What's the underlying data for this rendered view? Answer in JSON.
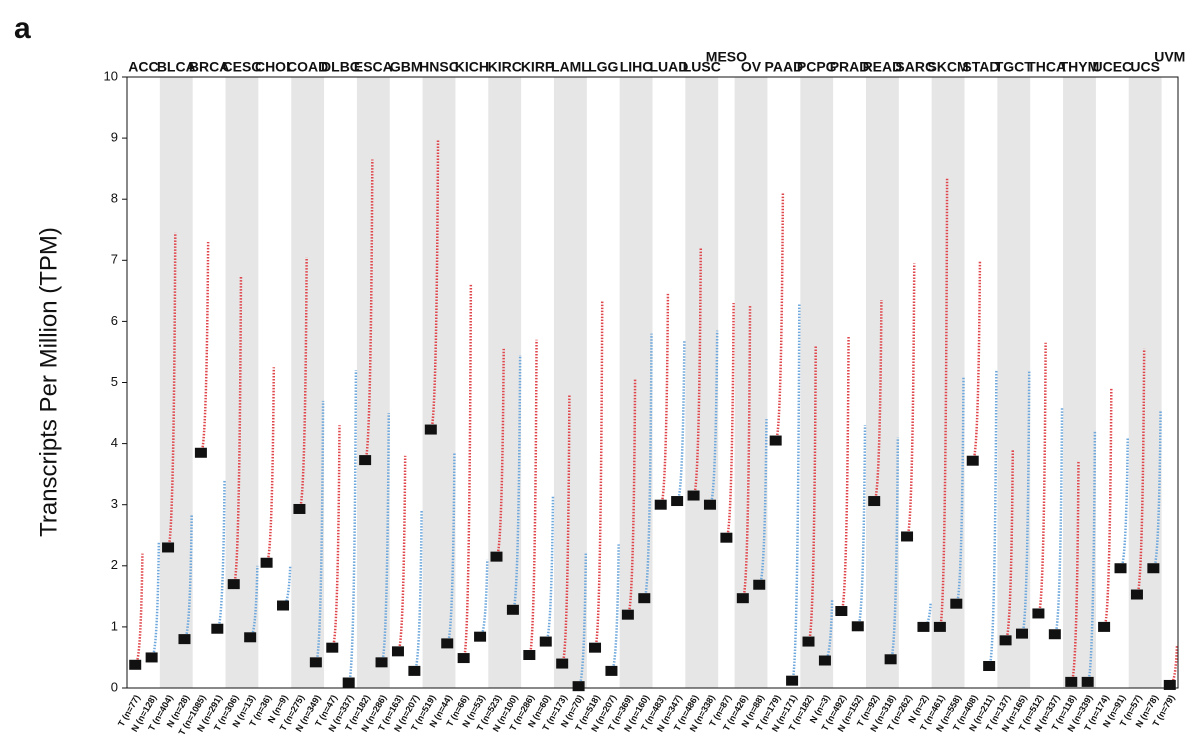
{
  "chart_data": {
    "type": "strip",
    "panel_label": "a",
    "ylabel": "Transcripts Per Million (TPM)",
    "ylim": [
      0,
      10
    ],
    "yticks": [
      0,
      1,
      2,
      3,
      4,
      5,
      6,
      7,
      8,
      9,
      10
    ],
    "label_color": "#111111",
    "highlight_color": "#e8383d",
    "band_color": "#e6e6e6",
    "groups": [
      {
        "name": "ACC",
        "highlight": false,
        "columns": [
          {
            "label": "T (n=77)",
            "color": "#e0474c",
            "median": 0.38,
            "max": 2.2
          },
          {
            "label": "N (n=128)",
            "color": "#6fa8dc",
            "median": 0.5,
            "max": 2.4
          }
        ]
      },
      {
        "name": "BLCA",
        "highlight": true,
        "columns": [
          {
            "label": "T (n=404)",
            "color": "#e0474c",
            "median": 2.3,
            "max": 7.45
          },
          {
            "label": "N (n=28)",
            "color": "#6fa8dc",
            "median": 0.8,
            "max": 2.85
          }
        ]
      },
      {
        "name": "BRCA",
        "highlight": true,
        "columns": [
          {
            "label": "T (n=1085)",
            "color": "#e0474c",
            "median": 3.85,
            "max": 7.3
          },
          {
            "label": "N (n=291)",
            "color": "#6fa8dc",
            "median": 0.97,
            "max": 3.4
          }
        ]
      },
      {
        "name": "CESC",
        "highlight": false,
        "columns": [
          {
            "label": "T (n=306)",
            "color": "#e0474c",
            "median": 1.7,
            "max": 6.75
          },
          {
            "label": "N (n=13)",
            "color": "#6fa8dc",
            "median": 0.83,
            "max": 2.0
          }
        ]
      },
      {
        "name": "CHOL",
        "highlight": false,
        "columns": [
          {
            "label": "T (n=36)",
            "color": "#e0474c",
            "median": 2.05,
            "max": 5.25
          },
          {
            "label": "N (n=9)",
            "color": "#6fa8dc",
            "median": 1.35,
            "max": 2.0
          }
        ]
      },
      {
        "name": "COAD",
        "highlight": true,
        "columns": [
          {
            "label": "T (n=275)",
            "color": "#e0474c",
            "median": 2.93,
            "max": 7.05
          },
          {
            "label": "N (n=349)",
            "color": "#6fa8dc",
            "median": 0.42,
            "max": 4.7
          }
        ]
      },
      {
        "name": "DLBC",
        "highlight": false,
        "columns": [
          {
            "label": "T (n=47)",
            "color": "#e0474c",
            "median": 0.66,
            "max": 4.3
          },
          {
            "label": "N (n=337)",
            "color": "#6fa8dc",
            "median": 0.09,
            "max": 5.2
          }
        ]
      },
      {
        "name": "ESCA",
        "highlight": true,
        "columns": [
          {
            "label": "T (n=182)",
            "color": "#e0474c",
            "median": 3.73,
            "max": 8.65
          },
          {
            "label": "N (n=286)",
            "color": "#6fa8dc",
            "median": 0.42,
            "max": 4.5
          }
        ]
      },
      {
        "name": "GBM",
        "highlight": false,
        "columns": [
          {
            "label": "T (n=163)",
            "color": "#e0474c",
            "median": 0.6,
            "max": 3.8
          },
          {
            "label": "N (n=207)",
            "color": "#6fa8dc",
            "median": 0.28,
            "max": 2.9
          }
        ]
      },
      {
        "name": "HNSC",
        "highlight": true,
        "columns": [
          {
            "label": "T (n=519)",
            "color": "#e0474c",
            "median": 4.23,
            "max": 8.98
          },
          {
            "label": "N (n=44)",
            "color": "#6fa8dc",
            "median": 0.73,
            "max": 3.85
          }
        ]
      },
      {
        "name": "KICH",
        "highlight": false,
        "columns": [
          {
            "label": "T (n=66)",
            "color": "#e0474c",
            "median": 0.49,
            "max": 6.6
          },
          {
            "label": "N (n=53)",
            "color": "#6fa8dc",
            "median": 0.84,
            "max": 2.1
          }
        ]
      },
      {
        "name": "KIRC",
        "highlight": false,
        "columns": [
          {
            "label": "T (n=523)",
            "color": "#e0474c",
            "median": 2.15,
            "max": 5.55
          },
          {
            "label": "N (n=100)",
            "color": "#6fa8dc",
            "median": 1.28,
            "max": 5.45
          }
        ]
      },
      {
        "name": "KIRP",
        "highlight": false,
        "columns": [
          {
            "label": "T (n=286)",
            "color": "#e0474c",
            "median": 0.54,
            "max": 5.7
          },
          {
            "label": "N (n=60)",
            "color": "#6fa8dc",
            "median": 0.76,
            "max": 3.15
          }
        ]
      },
      {
        "name": "LAML",
        "highlight": false,
        "columns": [
          {
            "label": "T (n=173)",
            "color": "#e0474c",
            "median": 0.4,
            "max": 4.8
          },
          {
            "label": "N (n=70)",
            "color": "#6fa8dc",
            "median": 0.03,
            "max": 2.2
          }
        ]
      },
      {
        "name": "LGG",
        "highlight": false,
        "columns": [
          {
            "label": "T (n=518)",
            "color": "#e0474c",
            "median": 0.66,
            "max": 6.35
          },
          {
            "label": "N (n=207)",
            "color": "#6fa8dc",
            "median": 0.28,
            "max": 2.35
          }
        ]
      },
      {
        "name": "LIHC",
        "highlight": false,
        "columns": [
          {
            "label": "T (n=369)",
            "color": "#e0474c",
            "median": 1.2,
            "max": 5.05
          },
          {
            "label": "N (n=160)",
            "color": "#6fa8dc",
            "median": 1.47,
            "max": 5.8
          }
        ]
      },
      {
        "name": "LUAD",
        "highlight": false,
        "columns": [
          {
            "label": "T (n=483)",
            "color": "#e0474c",
            "median": 3.0,
            "max": 6.45
          },
          {
            "label": "N (n=347)",
            "color": "#6fa8dc",
            "median": 3.06,
            "max": 5.7
          }
        ]
      },
      {
        "name": "LUSC",
        "highlight": false,
        "columns": [
          {
            "label": "T (n=486)",
            "color": "#e0474c",
            "median": 3.15,
            "max": 7.2
          },
          {
            "label": "N (n=338)",
            "color": "#6fa8dc",
            "median": 3.0,
            "max": 5.85
          }
        ]
      },
      {
        "name": "MESO",
        "highlight": false,
        "columns": [
          {
            "label": "T (n=87)",
            "color": "#e0474c",
            "median": 2.46,
            "max": 6.3
          }
        ]
      },
      {
        "name": "OV",
        "highlight": false,
        "columns": [
          {
            "label": "T (n=426)",
            "color": "#e0474c",
            "median": 1.47,
            "max": 6.25
          },
          {
            "label": "N (n=88)",
            "color": "#6fa8dc",
            "median": 1.69,
            "max": 4.4
          }
        ]
      },
      {
        "name": "PAAD",
        "highlight": true,
        "columns": [
          {
            "label": "T (n=179)",
            "color": "#e0474c",
            "median": 4.05,
            "max": 8.1
          },
          {
            "label": "N (n=171)",
            "color": "#6fa8dc",
            "median": 0.12,
            "max": 6.3
          }
        ]
      },
      {
        "name": "PCPG",
        "highlight": false,
        "columns": [
          {
            "label": "T (n=182)",
            "color": "#e0474c",
            "median": 0.76,
            "max": 5.6
          },
          {
            "label": "N (n=3)",
            "color": "#6fa8dc",
            "median": 0.45,
            "max": 1.45
          }
        ]
      },
      {
        "name": "PRAD",
        "highlight": false,
        "columns": [
          {
            "label": "T (n=492)",
            "color": "#e0474c",
            "median": 1.26,
            "max": 5.75
          },
          {
            "label": "N (n=152)",
            "color": "#6fa8dc",
            "median": 1.01,
            "max": 4.3
          }
        ]
      },
      {
        "name": "READ",
        "highlight": true,
        "columns": [
          {
            "label": "T (n=92)",
            "color": "#e0474c",
            "median": 3.06,
            "max": 6.35
          },
          {
            "label": "N (n=318)",
            "color": "#6fa8dc",
            "median": 0.47,
            "max": 4.1
          }
        ]
      },
      {
        "name": "SARC",
        "highlight": false,
        "columns": [
          {
            "label": "T (n=262)",
            "color": "#e0474c",
            "median": 2.48,
            "max": 6.95
          },
          {
            "label": "N (n=2)",
            "color": "#6fa8dc",
            "median": 1.0,
            "max": 1.4
          }
        ]
      },
      {
        "name": "SKCM",
        "highlight": false,
        "columns": [
          {
            "label": "T (n=461)",
            "color": "#e0474c",
            "median": 1.0,
            "max": 8.35
          },
          {
            "label": "N (n=558)",
            "color": "#6fa8dc",
            "median": 1.38,
            "max": 5.1
          }
        ]
      },
      {
        "name": "STAD",
        "highlight": true,
        "columns": [
          {
            "label": "T (n=408)",
            "color": "#e0474c",
            "median": 3.72,
            "max": 7.0
          },
          {
            "label": "N (n=211)",
            "color": "#6fa8dc",
            "median": 0.36,
            "max": 5.2
          }
        ]
      },
      {
        "name": "TGCT",
        "highlight": false,
        "columns": [
          {
            "label": "T (n=137)",
            "color": "#e0474c",
            "median": 0.78,
            "max": 3.9
          },
          {
            "label": "N (n=165)",
            "color": "#6fa8dc",
            "median": 0.89,
            "max": 5.2
          }
        ]
      },
      {
        "name": "THCA",
        "highlight": false,
        "columns": [
          {
            "label": "T (n=512)",
            "color": "#e0474c",
            "median": 1.22,
            "max": 5.65
          },
          {
            "label": "N (n=337)",
            "color": "#6fa8dc",
            "median": 0.88,
            "max": 4.6
          }
        ]
      },
      {
        "name": "THYM",
        "highlight": false,
        "columns": [
          {
            "label": "T (n=118)",
            "color": "#e0474c",
            "median": 0.1,
            "max": 3.7
          },
          {
            "label": "N (n=339)",
            "color": "#6fa8dc",
            "median": 0.1,
            "max": 4.2
          }
        ]
      },
      {
        "name": "UCEC",
        "highlight": false,
        "columns": [
          {
            "label": "T (n=174)",
            "color": "#e0474c",
            "median": 1.0,
            "max": 4.9
          },
          {
            "label": "N (n=91)",
            "color": "#6fa8dc",
            "median": 1.96,
            "max": 4.1
          }
        ]
      },
      {
        "name": "UCS",
        "highlight": false,
        "columns": [
          {
            "label": "T (n=57)",
            "color": "#e0474c",
            "median": 1.53,
            "max": 5.55
          },
          {
            "label": "N (n=78)",
            "color": "#6fa8dc",
            "median": 1.96,
            "max": 4.55
          }
        ]
      },
      {
        "name": "UVM",
        "highlight": false,
        "columns": [
          {
            "label": "T (n=79)",
            "color": "#e0474c",
            "median": 0.05,
            "max": 0.7
          }
        ]
      }
    ]
  }
}
